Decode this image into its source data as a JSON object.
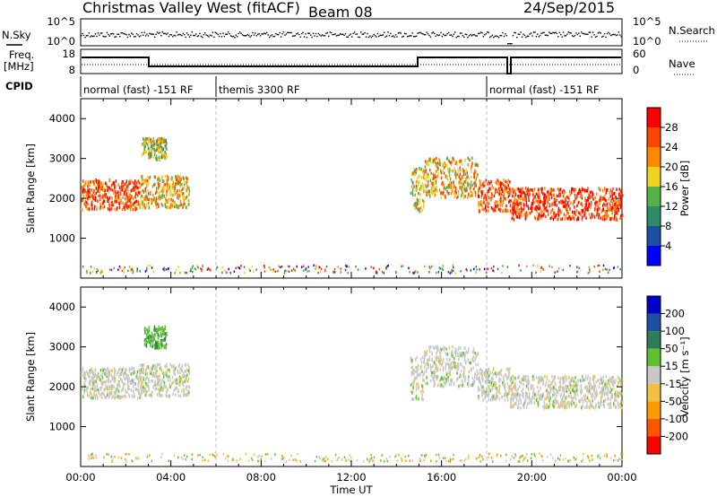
{
  "header": {
    "title": "Christmas Valley West (fitACF)",
    "beam": "Beam 08",
    "date": "24/Sep/2015"
  },
  "top_panels": {
    "nsky_label": "N.Sky",
    "nsearch_label": "N.Search",
    "freq_label_1": "Freq.",
    "freq_label_2": "[MHz]",
    "nave_label": "Nave",
    "cpid_label": "CPID",
    "nsky_ticks": [
      "10^5",
      "10^0"
    ],
    "nsky_right_ticks": [
      "10^5",
      "10^0"
    ],
    "freq_ticks": [
      "18",
      "8"
    ],
    "nave_ticks": [
      "60",
      "0"
    ]
  },
  "cpid_segments": [
    {
      "start": 0.0,
      "end": 6.0,
      "label": "normal (fast) -151 RF"
    },
    {
      "start": 6.0,
      "end": 18.0,
      "label": "themis 3300 RF"
    },
    {
      "start": 18.0,
      "end": 24.0,
      "label": "normal (fast) -151 RF"
    }
  ],
  "axis_labels": {
    "x": "Time UT",
    "y_slant": "Slant Range [km]",
    "power": "Power [dB]",
    "velocity": "Velocity [m s⁻¹]"
  },
  "colors": {
    "power": [
      "#0000ff",
      "#1f4fa0",
      "#2f8a6a",
      "#55b04a",
      "#f0d020",
      "#ff8800",
      "#ff4400",
      "#ff0000"
    ],
    "velocity": [
      "#ff0000",
      "#ff5500",
      "#ff9900",
      "#f0c040",
      "#c8c8c8",
      "#60c030",
      "#2e7d55",
      "#1f4fa0",
      "#0000cc"
    ]
  },
  "chart_data": [
    {
      "type": "heatmap",
      "name": "power",
      "x_range_hours": [
        0,
        24
      ],
      "x_ticks": [
        "00:00",
        "04:00",
        "08:00",
        "12:00",
        "16:00",
        "20:00",
        "00:00"
      ],
      "ylim": [
        0,
        4500
      ],
      "y_ticks": [
        1000,
        2000,
        3000,
        4000
      ],
      "colorbar_label": "Power [dB]",
      "colorbar_ticks": [
        4,
        8,
        12,
        16,
        20,
        24,
        28
      ],
      "scatter_bands": [
        {
          "t0": 0.0,
          "t1": 2.6,
          "r_low": 1750,
          "r_high": 2500,
          "value": 26
        },
        {
          "t0": 2.6,
          "t1": 4.8,
          "r_low": 1800,
          "r_high": 2600,
          "value": 20
        },
        {
          "t0": 2.7,
          "t1": 3.8,
          "r_low": 3000,
          "r_high": 3550,
          "value": 16
        },
        {
          "t0": 14.6,
          "t1": 15.2,
          "r_low": 1700,
          "r_high": 2800,
          "value": 18
        },
        {
          "t0": 15.2,
          "t1": 17.6,
          "r_low": 2050,
          "r_high": 3050,
          "value": 20
        },
        {
          "t0": 17.6,
          "t1": 19.0,
          "r_low": 1700,
          "r_high": 2500,
          "value": 26
        },
        {
          "t0": 19.0,
          "t1": 24.0,
          "r_low": 1500,
          "r_high": 2300,
          "value": 27
        }
      ]
    },
    {
      "type": "heatmap",
      "name": "velocity",
      "x_range_hours": [
        0,
        24
      ],
      "x_ticks": [
        "00:00",
        "04:00",
        "08:00",
        "12:00",
        "16:00",
        "20:00",
        "00:00"
      ],
      "ylim": [
        0,
        4500
      ],
      "y_ticks": [
        1000,
        2000,
        3000,
        4000
      ],
      "colorbar_label": "Velocity [m s⁻¹]",
      "colorbar_ticks": [
        -200,
        -100,
        -50,
        -15,
        15,
        50,
        100,
        200
      ],
      "scatter_bands": [
        {
          "t0": 0.0,
          "t1": 2.6,
          "r_low": 1750,
          "r_high": 2500,
          "value": 0
        },
        {
          "t0": 2.6,
          "t1": 4.8,
          "r_low": 1800,
          "r_high": 2600,
          "value": 0
        },
        {
          "t0": 2.8,
          "t1": 3.8,
          "r_low": 3000,
          "r_high": 3550,
          "value": 40
        },
        {
          "t0": 14.6,
          "t1": 15.2,
          "r_low": 1700,
          "r_high": 2800,
          "value": 0
        },
        {
          "t0": 15.2,
          "t1": 17.6,
          "r_low": 2050,
          "r_high": 3050,
          "value": 0
        },
        {
          "t0": 17.6,
          "t1": 19.0,
          "r_low": 1700,
          "r_high": 2500,
          "value": 0
        },
        {
          "t0": 19.0,
          "t1": 24.0,
          "r_low": 1500,
          "r_high": 2300,
          "value": 0
        }
      ]
    }
  ]
}
